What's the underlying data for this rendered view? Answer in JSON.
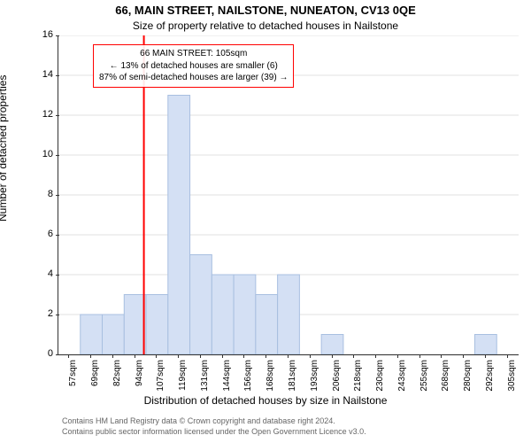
{
  "titles": {
    "line1": "66, MAIN STREET, NAILSTONE, NUNEATON, CV13 0QE",
    "line2": "Size of property relative to detached houses in Nailstone"
  },
  "axes": {
    "ylabel": "Number of detached properties",
    "xlabel": "Distribution of detached houses by size in Nailstone",
    "ylim": [
      0,
      16
    ],
    "ytick_step": 2,
    "yticklabels": [
      "0",
      "2",
      "4",
      "6",
      "8",
      "10",
      "12",
      "14",
      "16"
    ],
    "xticklabels": [
      "57sqm",
      "69sqm",
      "82sqm",
      "94sqm",
      "107sqm",
      "119sqm",
      "131sqm",
      "144sqm",
      "156sqm",
      "168sqm",
      "181sqm",
      "193sqm",
      "206sqm",
      "218sqm",
      "230sqm",
      "243sqm",
      "255sqm",
      "268sqm",
      "280sqm",
      "292sqm",
      "305sqm"
    ]
  },
  "chart": {
    "type": "histogram",
    "bar_color": "#d4e0f4",
    "bar_stroke": "#a8bfe0",
    "grid_color": "#e0e0e0",
    "background_color": "#ffffff",
    "marker_color": "#ff0000",
    "marker_bin_index": 3,
    "values": [
      0,
      2,
      2,
      3,
      3,
      13,
      5,
      4,
      4,
      3,
      4,
      0,
      1,
      0,
      0,
      0,
      0,
      0,
      0,
      1,
      0
    ]
  },
  "annotation": {
    "line1": "66 MAIN STREET: 105sqm",
    "line2": "← 13% of detached houses are smaller (6)",
    "line3": "87% of semi-detached houses are larger (39) →"
  },
  "footer": {
    "line1": "Contains HM Land Registry data © Crown copyright and database right 2024.",
    "line2": "Contains public sector information licensed under the Open Government Licence v3.0."
  },
  "style": {
    "title_fontsize": 13,
    "subtitle_fontsize": 12,
    "label_fontsize": 12,
    "tick_fontsize": 11,
    "xtick_fontsize": 10,
    "annot_fontsize": 10,
    "footer_fontsize": 9,
    "footer_color": "#666666"
  }
}
